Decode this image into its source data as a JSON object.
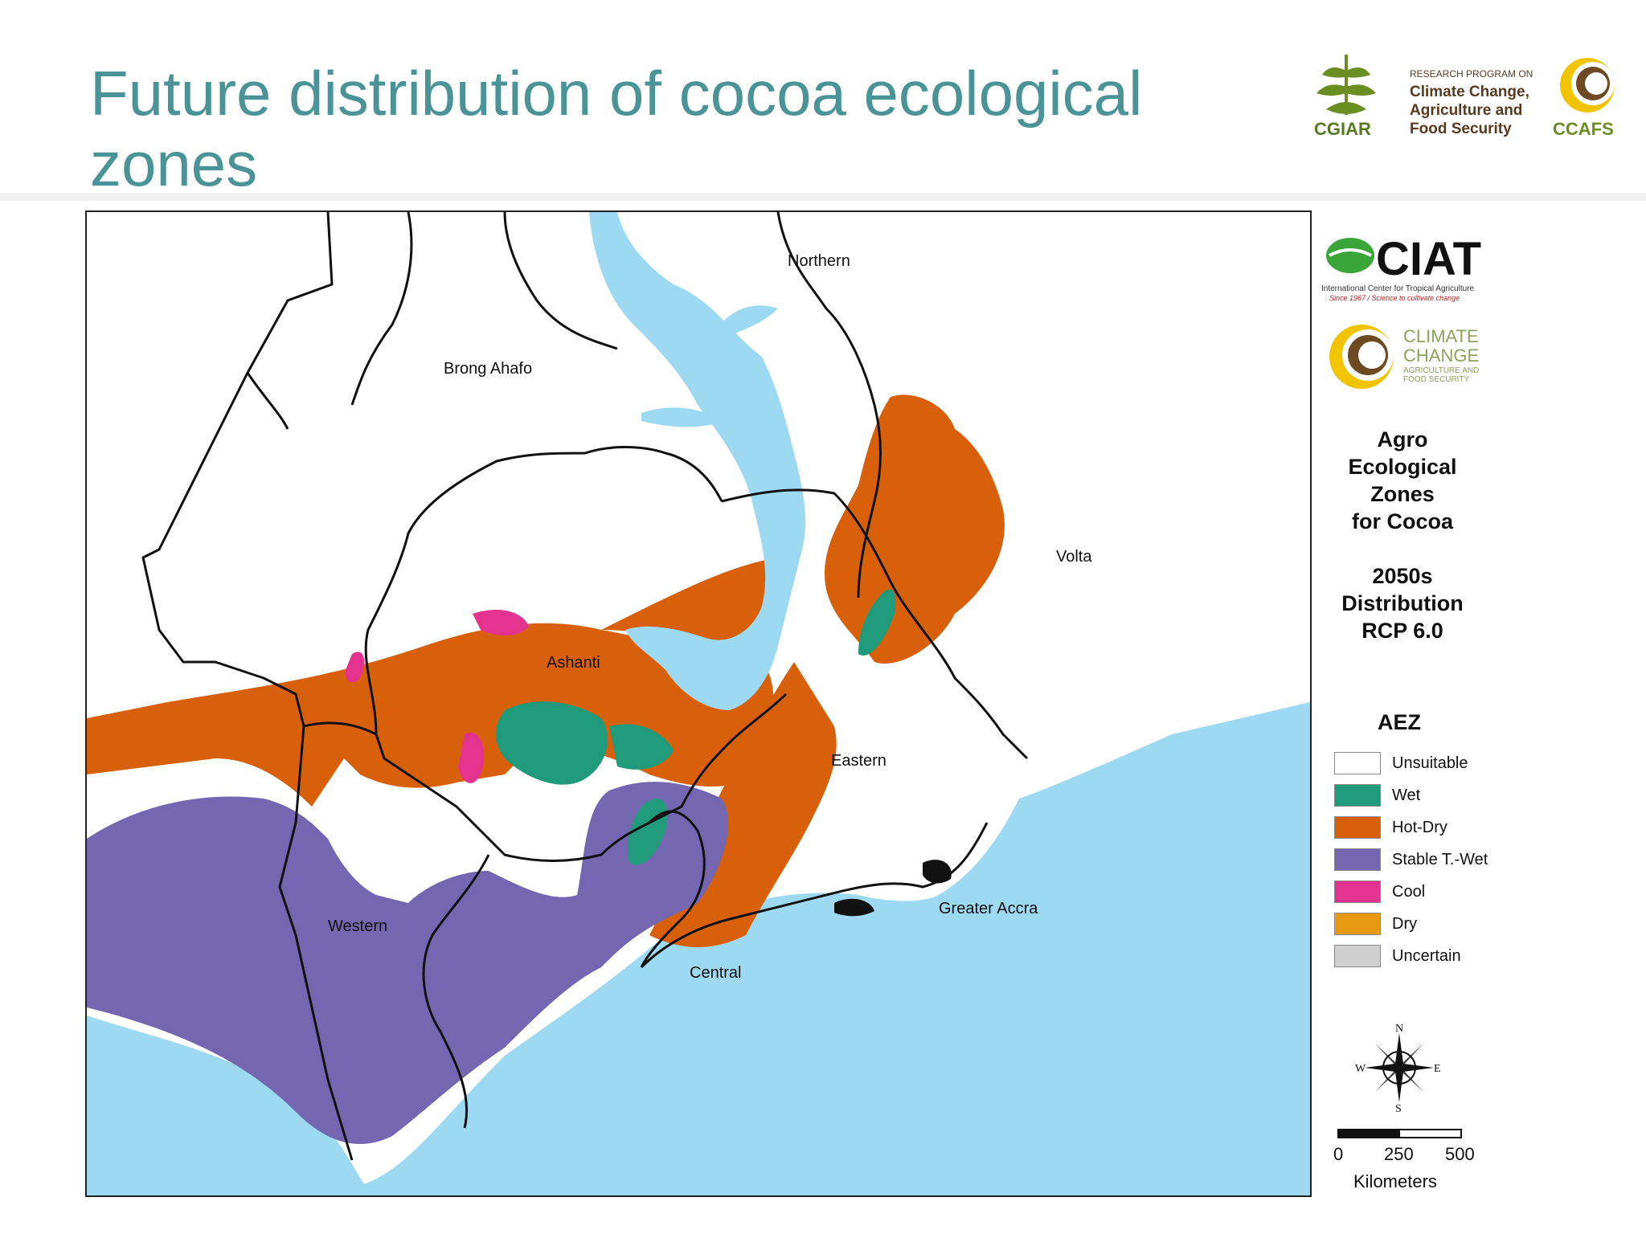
{
  "slide": {
    "title": "Future distribution of cocoa ecological zones"
  },
  "header_logos": {
    "cgiar": "CGIAR",
    "program_line1": "RESEARCH PROGRAM ON",
    "program_line2": "Climate Change,",
    "program_line3": "Agriculture and",
    "program_line4": "Food Security",
    "ccafs": "CCAFS"
  },
  "map": {
    "regions": [
      {
        "name": "Northern"
      },
      {
        "name": "Brong Ahafo"
      },
      {
        "name": "Volta"
      },
      {
        "name": "Ashanti"
      },
      {
        "name": "Eastern"
      },
      {
        "name": "Greater Accra"
      },
      {
        "name": "Western"
      },
      {
        "name": "Central"
      }
    ]
  },
  "legend": {
    "ciat_logo": {
      "name": "CIAT",
      "subtitle": "International Center for Tropical Agriculture",
      "tagline": "Since 1967 / Science to cultivate change"
    },
    "climate_change_logo": {
      "line1": "CLIMATE",
      "line2": "CHANGE",
      "line3": "AGRICULTURE AND",
      "line4": "FOOD SECURITY"
    },
    "title_lines": [
      "Agro",
      "Ecological",
      "Zones",
      "for Cocoa"
    ],
    "subtitle_lines": [
      "2050s",
      "Distribution",
      "RCP 6.0"
    ],
    "aez_heading": "AEZ",
    "items": [
      {
        "label": "Unsuitable",
        "color": "#ffffff"
      },
      {
        "label": "Wet",
        "color": "#1f9a7a"
      },
      {
        "label": "Hot-Dry",
        "color": "#d8600b"
      },
      {
        "label": "Stable T.-Wet",
        "color": "#7466b0"
      },
      {
        "label": "Cool",
        "color": "#e4338f"
      },
      {
        "label": "Dry",
        "color": "#e89a14"
      },
      {
        "label": "Uncertain",
        "color": "#cfcfcf"
      }
    ],
    "compass": {
      "n": "N",
      "e": "E",
      "s": "S",
      "w": "W"
    },
    "scale": {
      "tick_0": "0",
      "tick_1": "250",
      "tick_2": "500",
      "unit": "Kilometers"
    }
  },
  "colors": {
    "water": "#9ed9f2",
    "boundary": "#111111",
    "title": "#4a9396"
  }
}
